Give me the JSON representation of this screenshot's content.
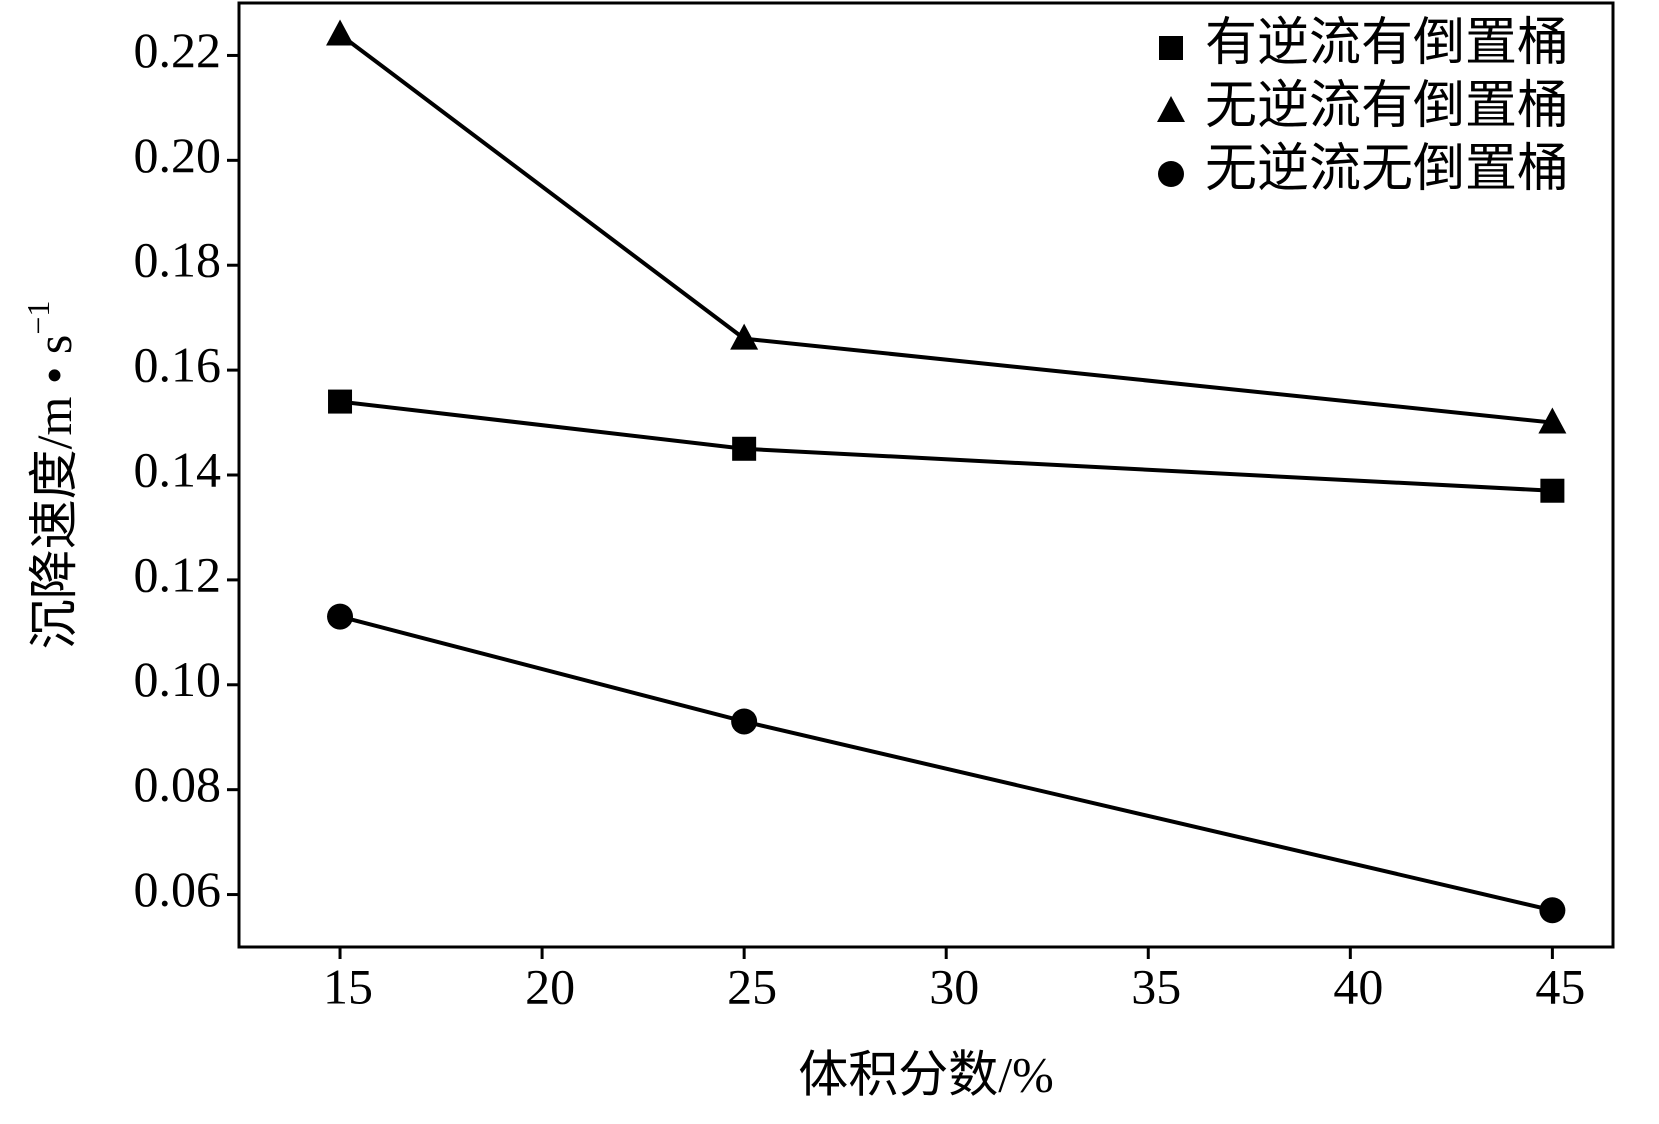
{
  "chart_data": {
    "type": "line",
    "x_label": "体积分数/%",
    "y_label": {
      "text": "沉降速度/m • s",
      "superscript": "−1"
    },
    "x": [
      15,
      25,
      45
    ],
    "series": [
      {
        "name": "有逆流有倒置桶",
        "color": "#000000",
        "marker": "square",
        "values": [
          0.154,
          0.145,
          0.137
        ]
      },
      {
        "name": "无逆流有倒置桶",
        "color": "#000000",
        "marker": "triangle",
        "values": [
          0.224,
          0.166,
          0.15
        ]
      },
      {
        "name": "无逆流无倒置桶",
        "color": "#000000",
        "marker": "circle",
        "values": [
          0.113,
          0.093,
          0.057
        ]
      }
    ],
    "xlim": [
      12.5,
      46.5
    ],
    "ylim": [
      0.05,
      0.23
    ],
    "xticks": [
      15,
      20,
      25,
      30,
      35,
      40,
      45
    ],
    "yticks": [
      {
        "value": 0.06,
        "label": "0.06"
      },
      {
        "value": 0.08,
        "label": "0.08"
      },
      {
        "value": 0.1,
        "label": "0.10"
      },
      {
        "value": 0.12,
        "label": "0.12"
      },
      {
        "value": 0.14,
        "label": "0.14"
      },
      {
        "value": 0.16,
        "label": "0.16"
      },
      {
        "value": 0.18,
        "label": "0.18"
      },
      {
        "value": 0.2,
        "label": "0.20"
      },
      0.22
    ],
    "grid": false,
    "legend": "upper right"
  }
}
